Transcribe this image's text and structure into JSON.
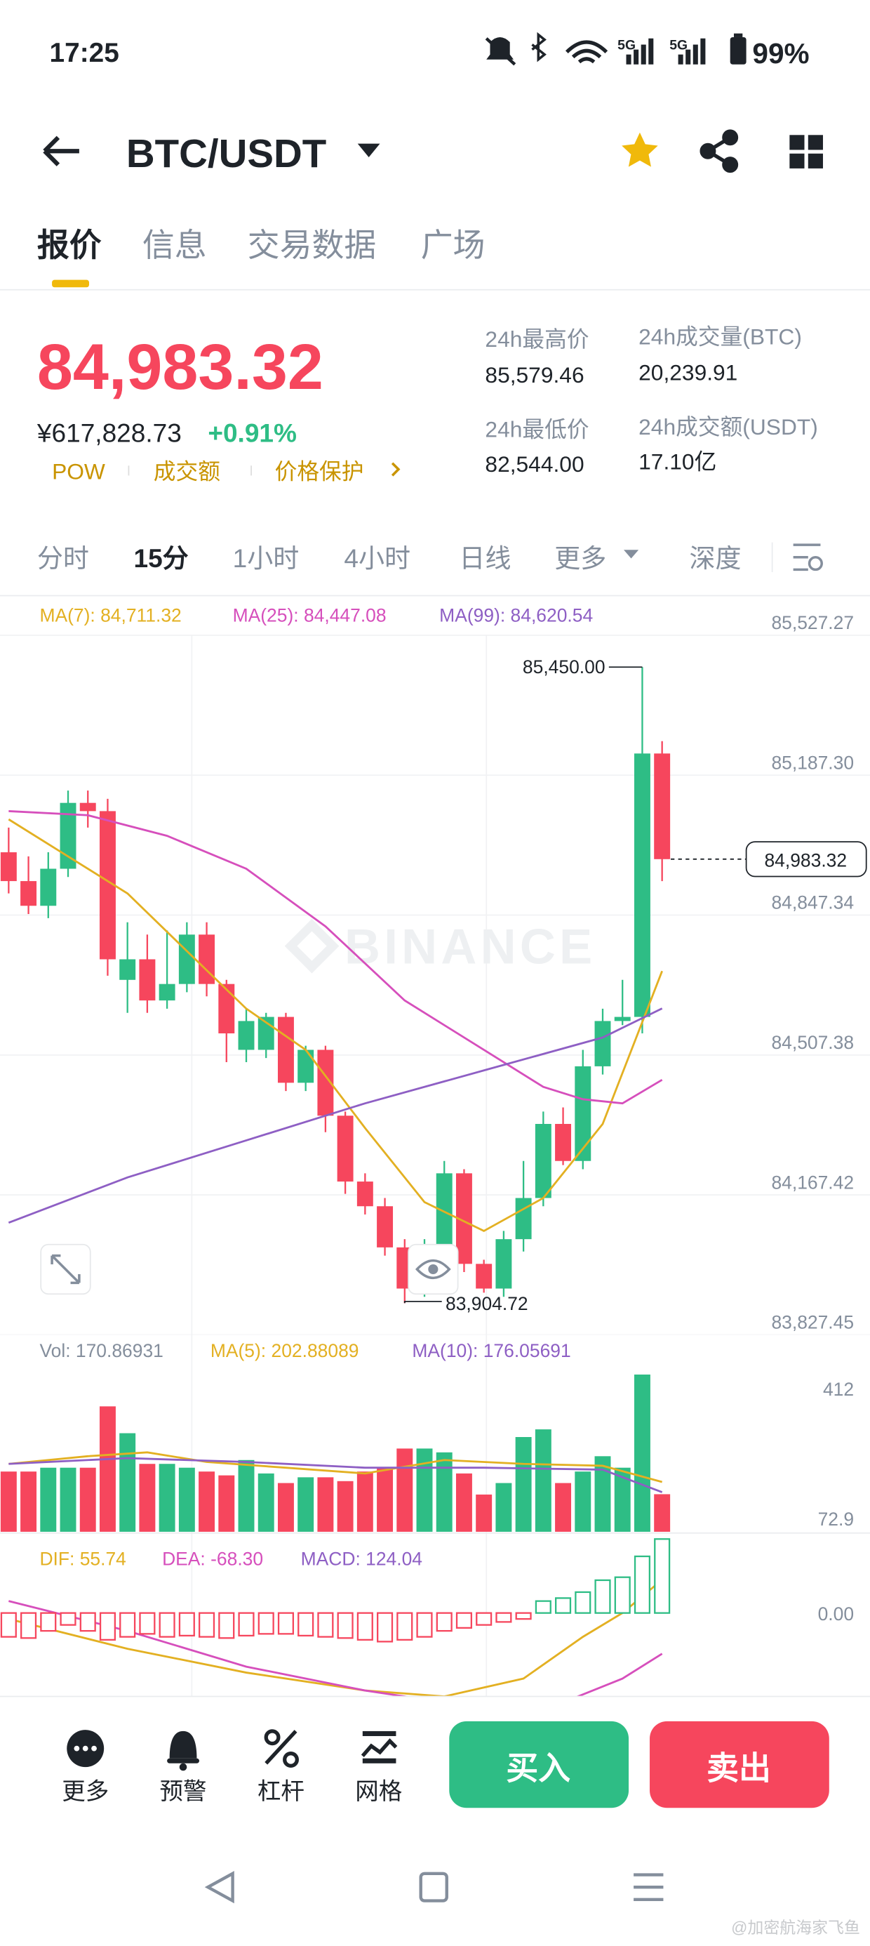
{
  "status_bar": {
    "time": "17:25",
    "battery": "99%"
  },
  "header": {
    "pair": "BTC/USDT"
  },
  "tabs": [
    "报价",
    "信息",
    "交易数据",
    "广场"
  ],
  "ticker": {
    "last_price": "84,983.32",
    "cny_price": "¥617,828.73",
    "change": "+0.91%",
    "tags": [
      "POW",
      "成交额",
      "价格保护"
    ],
    "stats": [
      {
        "label": "24h最高价",
        "value": "85,579.46"
      },
      {
        "label": "24h成交量(BTC)",
        "value": "20,239.91"
      },
      {
        "label": "24h最低价",
        "value": "82,544.00"
      },
      {
        "label": "24h成交额(USDT)",
        "value": "17.10亿"
      }
    ]
  },
  "intervals": [
    "分时",
    "15分",
    "1小时",
    "4小时",
    "日线",
    "更多",
    "深度"
  ],
  "chart_data": [
    {
      "type": "candlestick",
      "watermark": "BINANCE",
      "up_color": "#2ebd85",
      "down_color": "#f6465d",
      "open": [
        85000,
        84930,
        84870,
        84960,
        85120,
        85100,
        84690,
        84740,
        84640,
        84680,
        84800,
        84680,
        84520,
        84520,
        84600,
        84440,
        84520,
        84360,
        84200,
        84140,
        84040,
        83940,
        84030,
        84220,
        84000,
        83940,
        84060,
        84160,
        84340,
        84250,
        84480,
        84590,
        84600,
        85240
      ],
      "high": [
        85060,
        84990,
        85000,
        85150,
        85150,
        85130,
        84830,
        84800,
        84810,
        84830,
        84830,
        84690,
        84620,
        84610,
        84610,
        84530,
        84530,
        84370,
        84220,
        84160,
        84060,
        84060,
        84250,
        84230,
        84010,
        84080,
        84250,
        84370,
        84380,
        84520,
        84620,
        84690,
        85450,
        85270
      ],
      "low": [
        84900,
        84850,
        84840,
        84940,
        85060,
        84700,
        84610,
        84610,
        84620,
        84660,
        84650,
        84490,
        84490,
        84500,
        84420,
        84420,
        84320,
        84170,
        84120,
        84020,
        83904.72,
        83920,
        84010,
        83980,
        83930,
        83920,
        84030,
        84140,
        84240,
        84230,
        84460,
        84580,
        84560,
        84930
      ],
      "close": [
        84930,
        84870,
        84960,
        85120,
        85100,
        84740,
        84740,
        84640,
        84680,
        84800,
        84680,
        84560,
        84590,
        84600,
        84440,
        84520,
        84360,
        84200,
        84140,
        84040,
        83940,
        84030,
        84220,
        84000,
        83940,
        84060,
        84160,
        84340,
        84250,
        84480,
        84590,
        84600,
        85240,
        84983.32
      ],
      "ylim": [
        83827.45,
        85527.27
      ],
      "yticks": [
        {
          "value": 85527.27,
          "label": "85,527.27"
        },
        {
          "value": 85187.3,
          "label": "85,187.30"
        },
        {
          "value": 84847.34,
          "label": "84,847.34"
        },
        {
          "value": 84507.38,
          "label": "84,507.38"
        },
        {
          "value": 84167.42,
          "label": "84,167.42"
        },
        {
          "value": 83827.45,
          "label": "83,827.45"
        }
      ],
      "grid": true,
      "series": [
        {
          "name": "MA(7): 84,711.32",
          "kind": "line",
          "color": "#e3b022",
          "x": [
            0,
            3,
            6,
            9,
            12,
            15,
            18,
            21,
            24,
            27,
            30,
            33
          ],
          "values": [
            85080,
            84990,
            84900,
            84760,
            84620,
            84520,
            84330,
            84150,
            84080,
            84160,
            84340,
            84711.32
          ]
        },
        {
          "name": "MA(25): 84,447.08",
          "kind": "line",
          "color": "#d64fbc",
          "x": [
            0,
            4,
            8,
            12,
            16,
            20,
            24,
            27,
            29,
            31,
            33
          ],
          "values": [
            85100,
            85090,
            85040,
            84960,
            84820,
            84640,
            84520,
            84430,
            84400,
            84390,
            84447.08
          ]
        },
        {
          "name": "MA(99): 84,620.54",
          "kind": "line",
          "color": "#8e5fc4",
          "x": [
            0,
            6,
            12,
            18,
            24,
            30,
            33
          ],
          "values": [
            84100,
            84210,
            84300,
            84390,
            84470,
            84550,
            84620.54
          ]
        }
      ],
      "annotations": [
        {
          "value": 85450,
          "label": "85,450.00"
        },
        {
          "value": 83904.72,
          "label": "83,904.72"
        }
      ],
      "last_price": {
        "value": 84983.32,
        "label": "84,983.32"
      }
    },
    {
      "type": "bar",
      "ylim": [
        72.9,
        580
      ],
      "yticks": [
        412,
        72.9
      ],
      "series": [
        {
          "name": "Vol: 170.86931",
          "kind": "bar",
          "color": "#848e9c",
          "color_by": "candle",
          "values": [
            230,
            230,
            240,
            240,
            240,
            400,
            330,
            250,
            250,
            240,
            230,
            220,
            260,
            225,
            200,
            215,
            215,
            205,
            230,
            240,
            290,
            290,
            280,
            225,
            170,
            200,
            320,
            340,
            200,
            230,
            270,
            240,
            483,
            170.86931
          ]
        },
        {
          "name": "MA(5): 202.88089",
          "kind": "line",
          "color": "#e3b022",
          "x": [
            0,
            4,
            7,
            10,
            14,
            18,
            22,
            26,
            30,
            33
          ],
          "values": [
            250,
            270,
            280,
            255,
            240,
            225,
            260,
            250,
            245,
            202.88089
          ]
        },
        {
          "name": "MA(10): 176.05691",
          "kind": "line",
          "color": "#8e5fc4",
          "x": [
            0,
            6,
            12,
            18,
            24,
            30,
            33
          ],
          "values": [
            250,
            265,
            255,
            240,
            240,
            235,
            176.05691
          ]
        }
      ]
    },
    {
      "type": "bar",
      "ylim": [
        -140,
        130
      ],
      "yticks": [
        {
          "value": 0,
          "label": "0.00"
        }
      ],
      "series": [
        {
          "name": "DIF: 55.74",
          "kind": "line",
          "color": "#e3b022",
          "x": [
            0,
            6,
            12,
            18,
            22,
            26,
            29,
            31,
            33
          ],
          "values": [
            -10,
            -60,
            -100,
            -130,
            -140,
            -110,
            -40,
            0,
            55.74
          ]
        },
        {
          "name": "DEA: -68.30",
          "kind": "line",
          "color": "#d64fbc",
          "x": [
            0,
            6,
            12,
            18,
            24,
            28,
            31,
            33
          ],
          "values": [
            20,
            -30,
            -90,
            -130,
            -160,
            -150,
            -110,
            -68.3
          ]
        },
        {
          "name": "MACD: 124.04",
          "kind": "bar",
          "color": "#8e5fc4",
          "color_by": "sign",
          "hollow": true,
          "values": [
            -40,
            -42,
            -30,
            -20,
            -30,
            -45,
            -40,
            -35,
            -40,
            -38,
            -40,
            -42,
            -38,
            -35,
            -35,
            -38,
            -40,
            -42,
            -45,
            -48,
            -45,
            -40,
            -30,
            -25,
            -20,
            -15,
            -10,
            20,
            25,
            35,
            55,
            60,
            95,
            124.04
          ]
        }
      ]
    }
  ],
  "bottom_bar": {
    "actions": [
      "更多",
      "预警",
      "杠杆",
      "网格"
    ],
    "buy": "买入",
    "sell": "卖出"
  },
  "watermark": "@加密航海家飞鱼"
}
